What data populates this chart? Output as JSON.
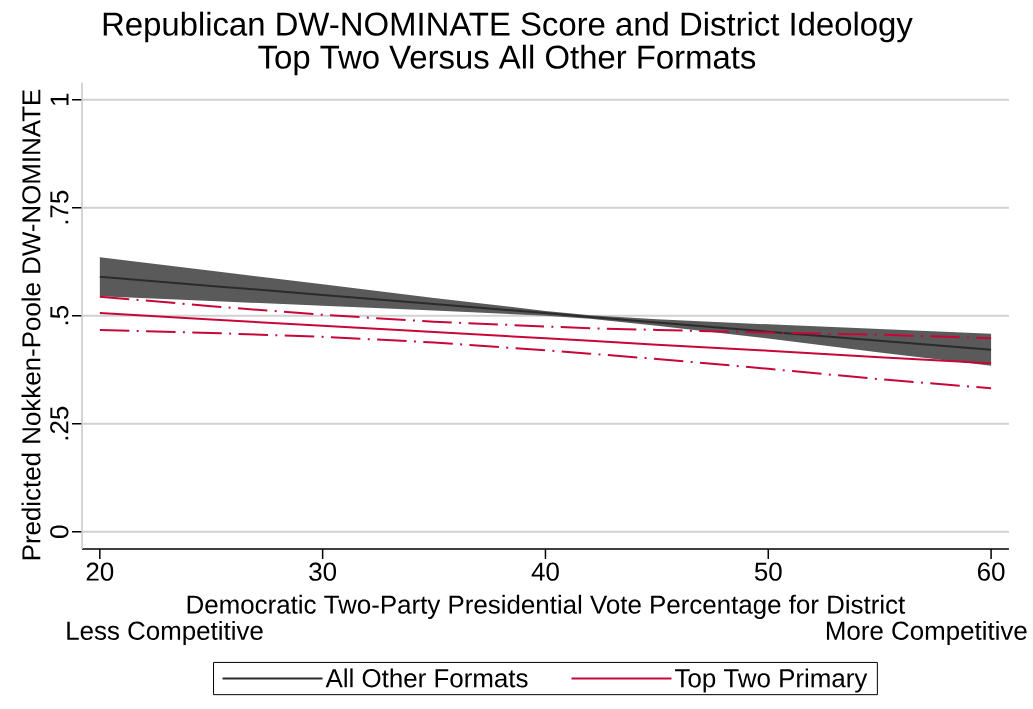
{
  "chart_data": {
    "type": "line",
    "title": "Republican DW-NOMINATE Score and District Ideology",
    "subtitle": "Top Two Versus All Other Formats",
    "xlabel": "Democratic Two-Party Presidential Vote Percentage for District",
    "ylabel": "Predicted Nokken-Poole DW-NOMINATE",
    "annotations": [
      "Less Competitive",
      "More Competitive"
    ],
    "x": [
      20,
      25,
      30,
      35,
      40,
      42,
      45,
      50,
      55,
      60
    ],
    "series": [
      {
        "name": "All Other Formats",
        "color": "#2b2b2b",
        "values": [
          0.59,
          0.569,
          0.548,
          0.527,
          0.506,
          0.497,
          0.484,
          0.463,
          0.442,
          0.421
        ],
        "lower": [
          0.545,
          0.534,
          0.523,
          0.512,
          0.5,
          0.493,
          0.477,
          0.447,
          0.415,
          0.384
        ],
        "upper": [
          0.635,
          0.604,
          0.573,
          0.541,
          0.511,
          0.501,
          0.492,
          0.48,
          0.469,
          0.458
        ]
      },
      {
        "name": "Top Two Primary",
        "color": "#c8063a",
        "values": [
          0.506,
          0.491,
          0.477,
          0.462,
          0.448,
          0.442,
          0.433,
          0.419,
          0.404,
          0.39
        ]
      },
      {
        "color": "#c8063a",
        "line_style": "dashed",
        "values": [
          0.544,
          0.522,
          0.502,
          0.486,
          0.475,
          0.471,
          0.467,
          0.461,
          0.456,
          0.448
        ]
      },
      {
        "color": "#c8063a",
        "line_style": "dashed",
        "values": [
          0.467,
          0.46,
          0.451,
          0.438,
          0.42,
          0.412,
          0.4,
          0.377,
          0.353,
          0.332
        ]
      }
    ],
    "xlim": [
      19.2,
      60.8
    ],
    "ylim": [
      -0.04,
      1.04
    ],
    "xticks": [
      20,
      30,
      40,
      50,
      60
    ],
    "yticks": [
      0,
      {
        "value": 0.25,
        "label": ".25"
      },
      {
        "value": 0.5,
        "label": ".5"
      },
      {
        "value": 0.75,
        "label": ".75"
      },
      1
    ],
    "grid": "y",
    "legend": "bottom",
    "marker": "none",
    "line_style": "solid"
  }
}
